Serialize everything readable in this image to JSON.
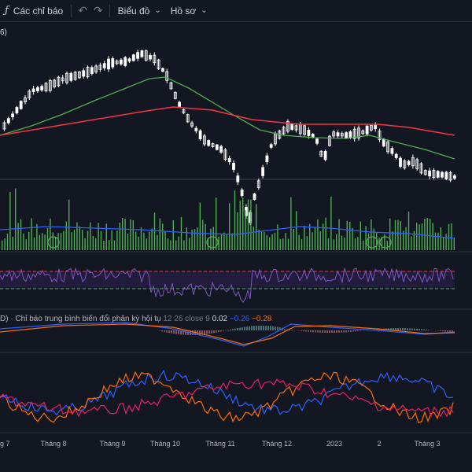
{
  "toolbar": {
    "indicators_label": "Các chỉ báo",
    "chart_label": "Biểu đồ",
    "profile_label": "Hồ sơ"
  },
  "main_pane": {
    "partial_label": "6)"
  },
  "macd": {
    "prefix": "D) · ",
    "name": "Chỉ báo trung bình biến đổi phân kỳ hội tụ",
    "params": "12 26 close 9",
    "hist": "0.02",
    "macd": "−0.26",
    "signal": "−0.28"
  },
  "x_labels": [
    "g 7",
    "Tháng 8",
    "Tháng 9",
    "Tháng 10",
    "Tháng 11",
    "Tháng 12",
    "2023",
    "2",
    "Tháng 3"
  ],
  "colors": {
    "background": "#131722",
    "candle": "#ffffff",
    "volume": "#4caf50",
    "ma_short": "#4caf50",
    "ma_long": "#f23645",
    "volume_ma": "#2962ff",
    "rsi": "#7e57c2",
    "macd_line": "#2962ff",
    "signal_line": "#ff6d00",
    "stoch_k": "#2962ff",
    "stoch_d": "#ff6d00",
    "stoch_3": "#e91e63"
  }
}
